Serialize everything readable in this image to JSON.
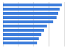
{
  "chart_data": {
    "type": "bar",
    "orientation": "horizontal",
    "categories": [
      null,
      null,
      null,
      null,
      null,
      null,
      null,
      null,
      null,
      null
    ],
    "values": [
      96.5,
      93,
      90.7,
      88,
      82.5,
      72,
      67.4,
      63,
      59,
      56
    ],
    "color": "#3d7ddb",
    "xlim": [
      0,
      100
    ],
    "xticks": [
      0,
      25,
      50,
      75,
      100
    ],
    "grid": true,
    "tick_labels": false
  }
}
